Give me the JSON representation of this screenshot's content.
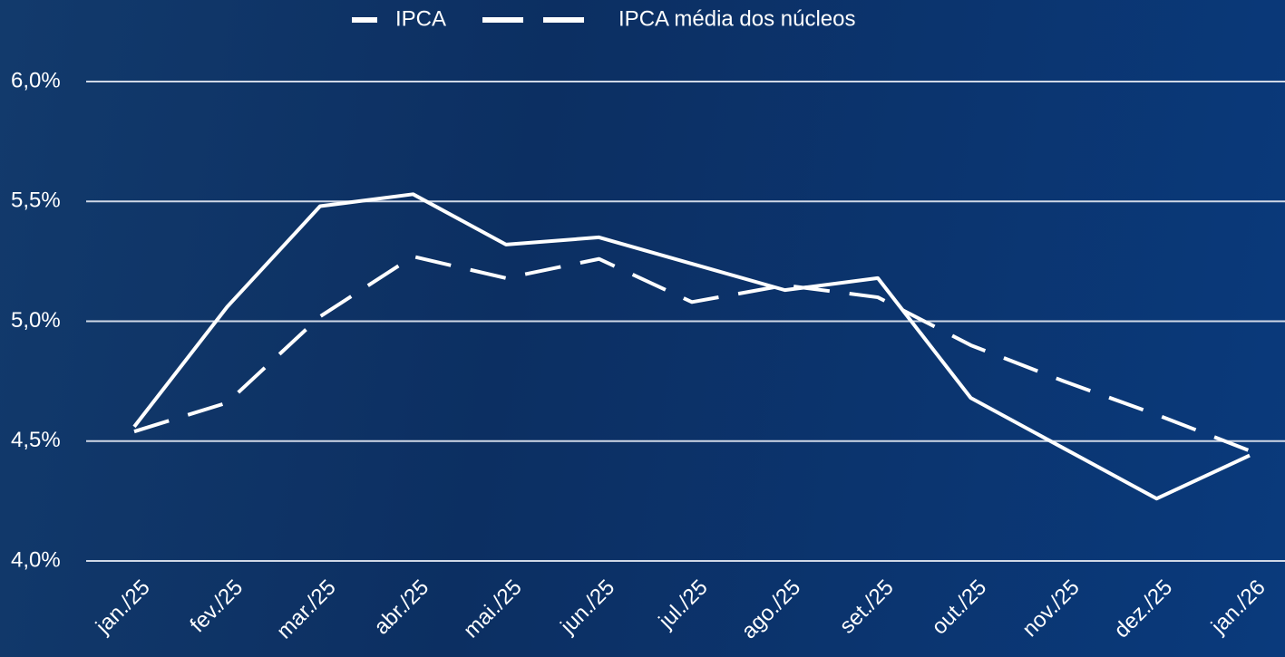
{
  "chart_data": {
    "type": "line",
    "categories": [
      "jan./25",
      "fev./25",
      "mar./25",
      "abr./25",
      "mai./25",
      "jun./25",
      "jul./25",
      "ago./25",
      "set./25",
      "out./25",
      "nov./25",
      "dez./25",
      "jan./26"
    ],
    "series": [
      {
        "name": "IPCA",
        "color": "#ffffff",
        "dashed": false,
        "values": [
          4.56,
          5.06,
          5.48,
          5.53,
          5.32,
          5.35,
          5.24,
          5.13,
          5.18,
          4.68,
          4.47,
          4.26,
          4.44
        ]
      },
      {
        "name": "IPCA média dos núcleos",
        "color": "#ffffff",
        "dashed": true,
        "values": [
          4.54,
          4.66,
          5.02,
          5.27,
          5.18,
          5.26,
          5.08,
          5.15,
          5.1,
          4.9,
          4.75,
          4.61,
          4.46
        ]
      }
    ],
    "ylim": [
      4.0,
      6.0
    ],
    "yticks": [
      {
        "value": 4.0,
        "label": "4,0%"
      },
      {
        "value": 4.5,
        "label": "4,5%"
      },
      {
        "value": 5.0,
        "label": "5,0%"
      },
      {
        "value": 5.5,
        "label": "5,5%"
      },
      {
        "value": 6.0,
        "label": "6,0%"
      }
    ],
    "grid": true,
    "legend": "top"
  }
}
